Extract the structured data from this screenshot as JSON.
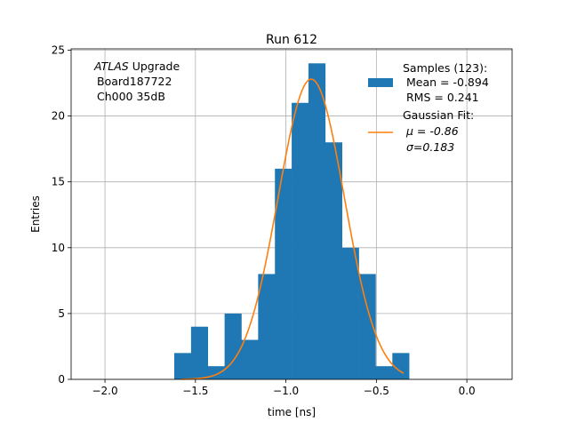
{
  "chart_data": {
    "type": "bar",
    "title": "Run 612",
    "xlabel": "time [ns]",
    "ylabel": "Entries",
    "xlim": [
      -2.187,
      0.25
    ],
    "ylim": [
      0,
      25.1
    ],
    "xticks": [
      -2.0,
      -1.5,
      -1.0,
      -0.5,
      0.0
    ],
    "xtick_labels": [
      "−2.0",
      "−1.5",
      "−1.0",
      "−0.5",
      "0.0"
    ],
    "yticks": [
      0,
      5,
      10,
      15,
      20,
      25
    ],
    "ytick_labels": [
      "0",
      "5",
      "10",
      "15",
      "20",
      "25"
    ],
    "grid": true,
    "bin_start": -1.617,
    "bin_width": 0.0927,
    "values": [
      2,
      4,
      1,
      5,
      3,
      8,
      16,
      21,
      24,
      18,
      10,
      8,
      1,
      2
    ],
    "fit": {
      "mu": -0.86,
      "sigma": 0.183,
      "amplitude": 22.8,
      "x_range": [
        -1.58,
        -0.35
      ]
    },
    "annotation": {
      "italic": "ATLAS",
      "rest": " Upgrade",
      "line2": "Board187722",
      "line3": "Ch000 35dB"
    },
    "legend": {
      "placement": "top-right",
      "samples_title": "Samples (123):",
      "samples_mean": "Mean = -0.894",
      "samples_rms": "RMS = 0.241",
      "fit_title": "Gaussian Fit:",
      "fit_mu": "μ = -0.86",
      "fit_sigma": "σ=0.183"
    },
    "colors": {
      "bar": "#1f77b4",
      "fit": "#ff7f0e",
      "grid": "#b0b0b0"
    }
  }
}
